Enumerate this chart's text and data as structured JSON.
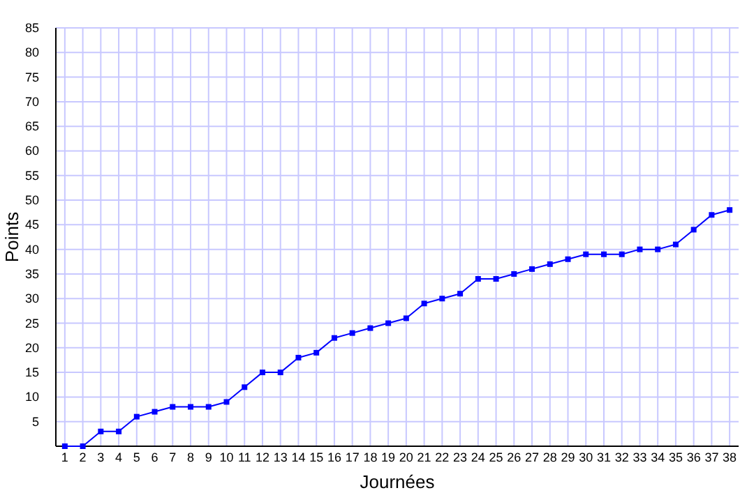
{
  "chart_data": {
    "type": "line",
    "xlabel": "Journées",
    "ylabel": "Points",
    "x": [
      1,
      2,
      3,
      4,
      5,
      6,
      7,
      8,
      9,
      10,
      11,
      12,
      13,
      14,
      15,
      16,
      17,
      18,
      19,
      20,
      21,
      22,
      23,
      24,
      25,
      26,
      27,
      28,
      29,
      30,
      31,
      32,
      33,
      34,
      35,
      36,
      37,
      38
    ],
    "series": [
      {
        "color": "#0000ff",
        "values": [
          0,
          0,
          3,
          3,
          6,
          7,
          8,
          8,
          8,
          9,
          12,
          15,
          15,
          18,
          19,
          22,
          23,
          24,
          25,
          26,
          29,
          30,
          31,
          34,
          34,
          35,
          36,
          37,
          38,
          39,
          39,
          39,
          40,
          40,
          41,
          44,
          47,
          48
        ]
      }
    ],
    "xlim": [
      0.5,
      38.5
    ],
    "xticks": [
      1,
      2,
      3,
      4,
      5,
      6,
      7,
      8,
      9,
      10,
      11,
      12,
      13,
      14,
      15,
      16,
      17,
      18,
      19,
      20,
      21,
      22,
      23,
      24,
      25,
      26,
      27,
      28,
      29,
      30,
      31,
      32,
      33,
      34,
      35,
      36,
      37,
      38
    ],
    "ylim": [
      0,
      85
    ],
    "yticks": [
      5,
      10,
      15,
      20,
      25,
      30,
      35,
      40,
      45,
      50,
      55,
      60,
      65,
      70,
      75,
      80,
      85
    ],
    "grid": true,
    "marker": "square",
    "line_style": "solid"
  }
}
